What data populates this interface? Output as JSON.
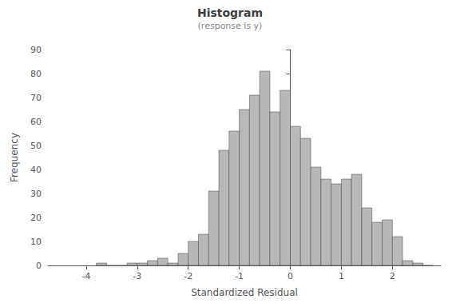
{
  "chart_data": {
    "type": "histogram",
    "title": "Histogram",
    "subtitle": "(response is y)",
    "xlabel": "Standardized Residual",
    "ylabel": "Frequency",
    "bins": [
      -3.8,
      -3.6,
      -3.4,
      -3.2,
      -3.0,
      -2.8,
      -2.6,
      -2.4,
      -2.2,
      -2.0,
      -1.8,
      -1.6,
      -1.4,
      -1.2,
      -1.0,
      -0.8,
      -0.6,
      -0.4,
      -0.2,
      0,
      0.2,
      0.4,
      0.6,
      0.8,
      1.0,
      1.2,
      1.4,
      1.6,
      1.8,
      2.0,
      2.2,
      2.4,
      2.6,
      2.8
    ],
    "values": [
      1,
      0,
      0,
      1,
      1,
      2,
      3,
      1,
      5,
      10,
      13,
      31,
      48,
      56,
      65,
      71,
      81,
      64,
      73,
      58,
      53,
      41,
      36,
      34,
      36,
      38,
      24,
      18,
      19,
      12,
      2,
      1,
      0
    ],
    "color": "#b8b8b8",
    "xlim": [
      -4.75,
      2.95
    ],
    "ylim": [
      0,
      90
    ],
    "xticks": [
      -4,
      -3,
      -2,
      -1,
      0,
      1,
      2
    ],
    "yticks": [
      0,
      10,
      20,
      30,
      40,
      50,
      60,
      70,
      80,
      90
    ],
    "grid": false
  }
}
